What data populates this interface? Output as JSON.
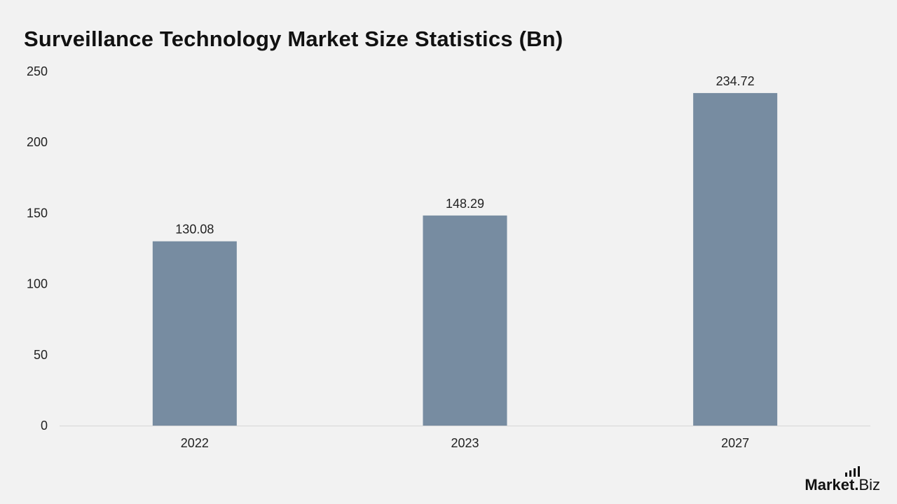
{
  "chart_data": {
    "type": "bar",
    "title": "Surveillance Technology Market Size Statistics (Bn)",
    "categories": [
      "2022",
      "2023",
      "2027"
    ],
    "values": [
      130.08,
      148.29,
      234.72
    ],
    "data_labels": [
      "130.08",
      "148.29",
      "234.72"
    ],
    "ylim": [
      0,
      250
    ],
    "yticks": [
      0,
      50,
      100,
      150,
      200,
      250
    ],
    "grid": false,
    "legend": "none",
    "bar_color": "#778ca1"
  },
  "brand": {
    "name_main": "Market",
    "name_dot": ".",
    "name_sub": "Biz"
  },
  "colors": {
    "background": "#f2f2f2",
    "bar": "#778ca1",
    "axis": "#d6d6d6",
    "text": "#222222"
  }
}
